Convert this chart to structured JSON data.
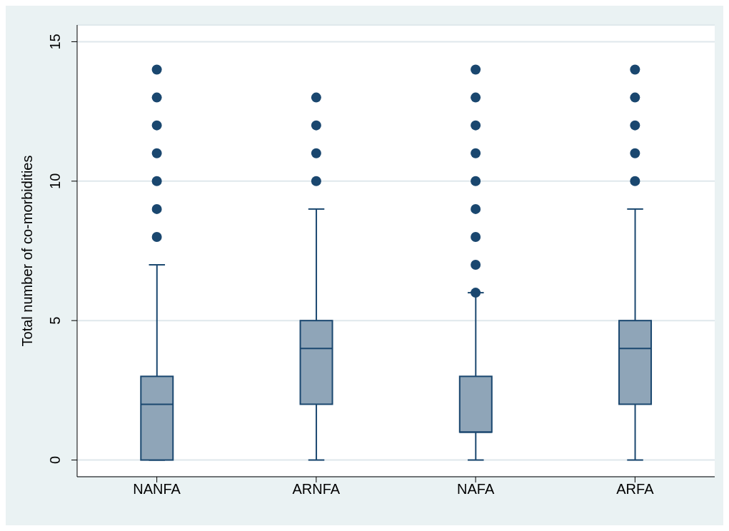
{
  "chart_data": {
    "type": "box",
    "ylabel": "Total number of co-morbidities",
    "categories": [
      "NANFA",
      "ARNFA",
      "NAFA",
      "ARFA"
    ],
    "color": "#8fa5b8",
    "boxes": [
      {
        "low": 0,
        "q1": 0,
        "median": 2,
        "q3": 3,
        "high": 7,
        "outliers": [
          8,
          9,
          10,
          11,
          12,
          13,
          14
        ]
      },
      {
        "low": 0,
        "q1": 2,
        "median": 4,
        "q3": 5,
        "high": 9,
        "outliers": [
          10,
          11,
          12,
          13
        ]
      },
      {
        "low": 0,
        "q1": 1,
        "median": 1,
        "q3": 3,
        "high": 6,
        "outliers": [
          6,
          7,
          8,
          9,
          10,
          11,
          12,
          13,
          14
        ]
      },
      {
        "low": 0,
        "q1": 2,
        "median": 4,
        "q3": 5,
        "high": 9,
        "outliers": [
          10,
          11,
          12,
          13,
          14
        ]
      }
    ],
    "ylim": [
      -0.6,
      15.6
    ],
    "yticks": [
      0,
      5,
      10,
      15
    ],
    "grid": "y",
    "marker": "circle"
  }
}
